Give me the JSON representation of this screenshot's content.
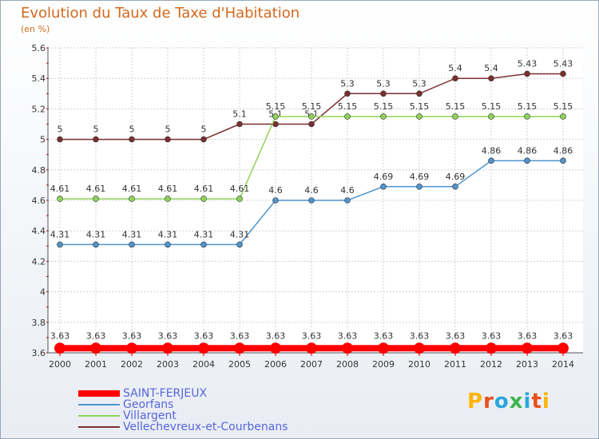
{
  "chart_data": {
    "type": "line",
    "title": "Evolution du Taux de Taxe d'Habitation",
    "subtitle": "(en %)",
    "categories": [
      "2000",
      "2001",
      "2002",
      "2003",
      "2004",
      "2005",
      "2006",
      "2007",
      "2008",
      "2009",
      "2010",
      "2011",
      "2012",
      "2013",
      "2014"
    ],
    "ylim": [
      3.6,
      5.6
    ],
    "yticks": [
      "3.6",
      "3.8",
      "4",
      "4.2",
      "4.4",
      "4.6",
      "4.8",
      "5",
      "5.2",
      "5.4",
      "5.6"
    ],
    "grid": true,
    "series": [
      {
        "name": "SAINT-FERJEUX",
        "color": "#ff0000",
        "values": [
          3.63,
          3.63,
          3.63,
          3.63,
          3.63,
          3.63,
          3.63,
          3.63,
          3.63,
          3.63,
          3.63,
          3.63,
          3.63,
          3.63,
          3.63
        ],
        "labels": [
          "3.63",
          "3.63",
          "3.63",
          "3.63",
          "3.63",
          "3.63",
          "3.63",
          "3.63",
          "3.63",
          "3.63",
          "3.63",
          "3.63",
          "3.63",
          "3.63",
          "3.63"
        ]
      },
      {
        "name": "Georfans",
        "color": "#4f94cd",
        "values": [
          4.31,
          4.31,
          4.31,
          4.31,
          4.31,
          4.31,
          4.6,
          4.6,
          4.6,
          4.69,
          4.69,
          4.69,
          4.86,
          4.86,
          4.86
        ],
        "labels": [
          "4.31",
          "4.31",
          "4.31",
          "4.31",
          "4.31",
          "4.31",
          "4.6",
          "4.6",
          "4.6",
          "4.69",
          "4.69",
          "4.69",
          "4.86",
          "4.86",
          "4.86"
        ]
      },
      {
        "name": "Villargent",
        "color": "#8fd35a",
        "values": [
          4.61,
          4.61,
          4.61,
          4.61,
          4.61,
          4.61,
          5.15,
          5.15,
          5.15,
          5.15,
          5.15,
          5.15,
          5.15,
          5.15,
          5.15
        ],
        "labels": [
          "4.61",
          "4.61",
          "4.61",
          "4.61",
          "4.61",
          "4.61",
          "5.15",
          "5.15",
          "5.15",
          "5.15",
          "5.15",
          "5.15",
          "5.15",
          "5.15",
          "5.15"
        ]
      },
      {
        "name": "Vellechevreux-et-Courbenans",
        "color": "#7b2f2f",
        "values": [
          5,
          5,
          5,
          5,
          5,
          5.1,
          5.1,
          5.1,
          5.3,
          5.3,
          5.3,
          5.4,
          5.4,
          5.43,
          5.43
        ],
        "labels": [
          "5",
          "5",
          "5",
          "5",
          "5",
          "5.1",
          "5.1",
          "5.1",
          "5.3",
          "5.3",
          "5.3",
          "5.4",
          "5.4",
          "5.43",
          "5.43"
        ]
      }
    ]
  },
  "logo": {
    "text": "Proxiti"
  }
}
